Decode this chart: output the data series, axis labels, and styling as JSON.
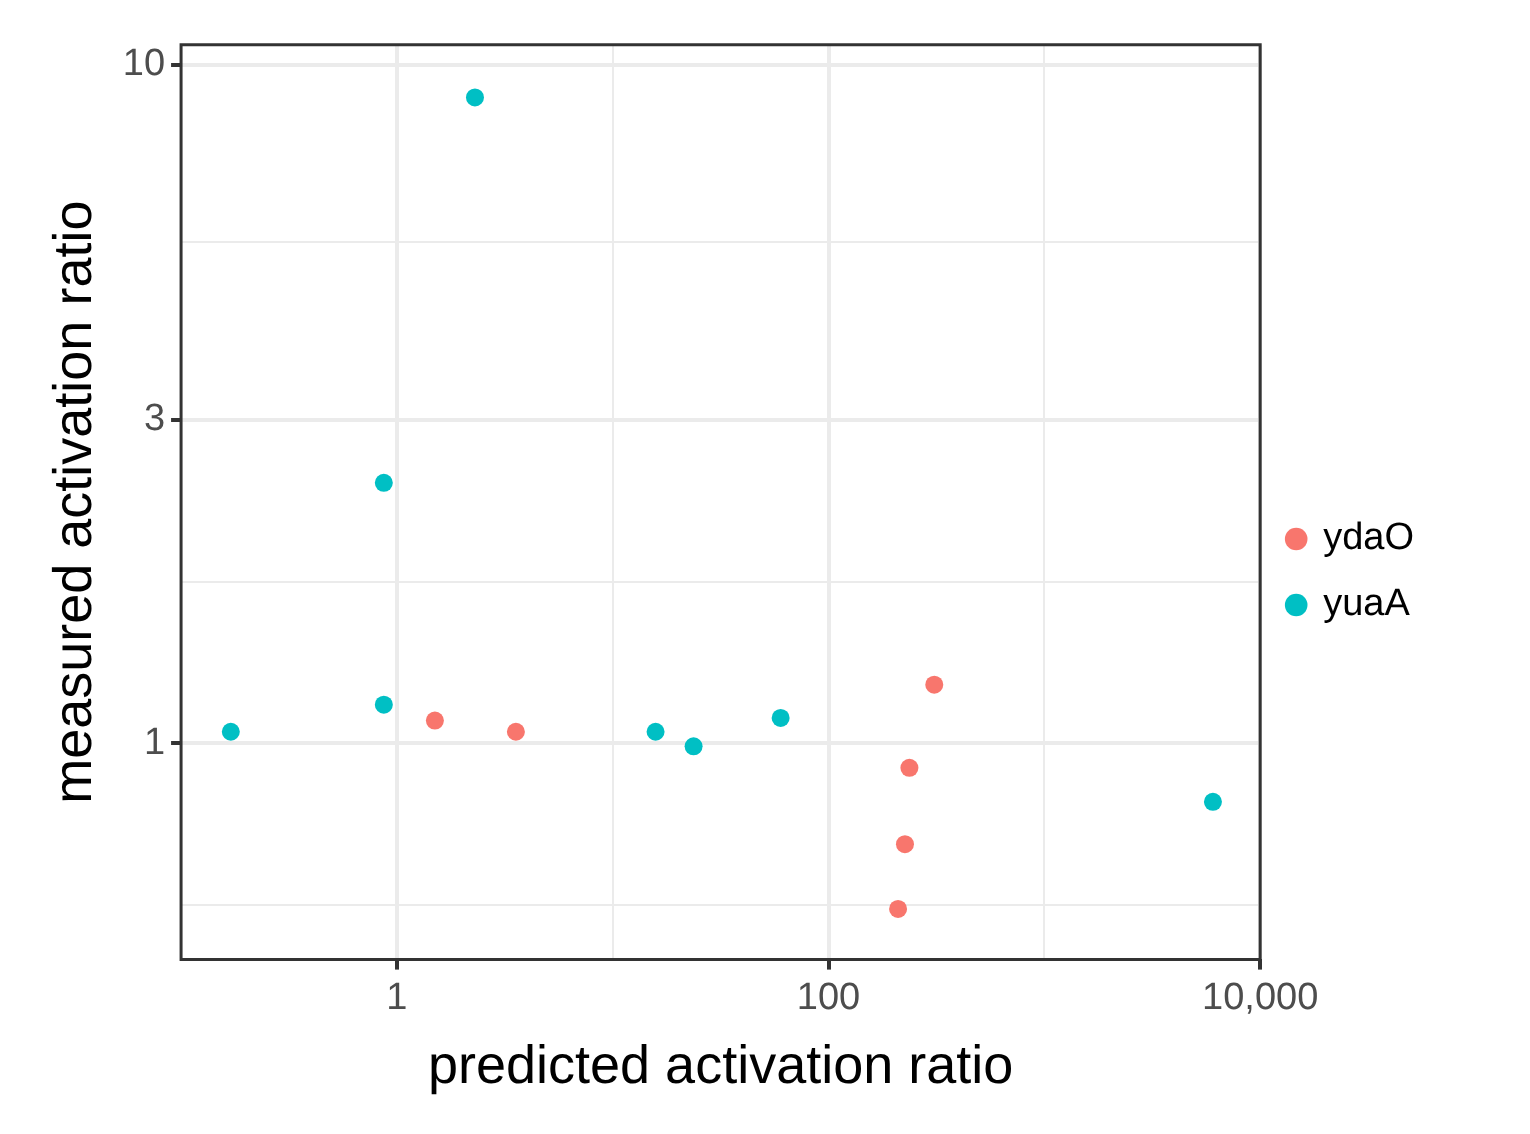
{
  "chart_data": {
    "type": "scatter",
    "xlabel": "predicted activation ratio",
    "ylabel": "measured activation ratio",
    "log": "xy",
    "grid": true,
    "legend": "right",
    "marker": "circle",
    "xlim": [
      0.1,
      10000
    ],
    "xticks": [
      {
        "value": 1,
        "label": "1"
      },
      {
        "value": 10,
        "label": null
      },
      {
        "value": 100,
        "label": "100"
      },
      {
        "value": 1000,
        "label": null
      },
      {
        "value": 10000,
        "label": "10,000"
      }
    ],
    "ylim": [
      0.48,
      10.7
    ],
    "yticks": [
      {
        "value": 0.577,
        "label": null
      },
      {
        "value": 1,
        "label": "1"
      },
      {
        "value": 1.73,
        "label": null
      },
      {
        "value": 3,
        "label": "3"
      },
      {
        "value": 5.48,
        "label": null
      },
      {
        "value": 10,
        "label": "10"
      }
    ],
    "series": [
      {
        "name": "ydaO",
        "color": "#f8766d",
        "x": [
          1.5,
          3.56,
          309,
          237,
          226,
          210
        ],
        "values": [
          1.08,
          1.04,
          1.22,
          0.92,
          0.71,
          0.57
        ]
      },
      {
        "name": "yuaA",
        "color": "#00bfc4",
        "x": [
          0.17,
          0.87,
          0.87,
          2.3,
          15.8,
          23.7,
          60,
          6040
        ],
        "values": [
          1.04,
          1.14,
          2.42,
          8.95,
          1.04,
          0.99,
          1.09,
          0.82
        ]
      }
    ]
  }
}
